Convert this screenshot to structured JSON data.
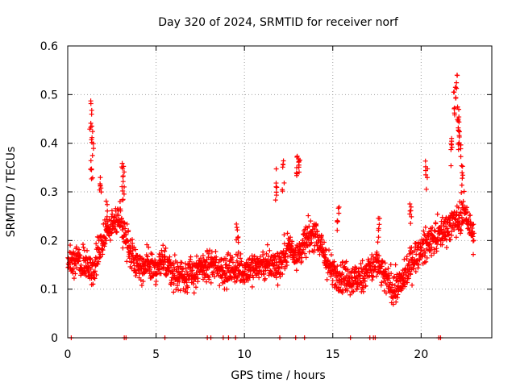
{
  "chart_data": {
    "type": "scatter",
    "title": "Day 320 of 2024, SRMTID for receiver norf",
    "xlabel": "GPS time / hours",
    "ylabel": "SRMTID / TECUs",
    "xlim": [
      0,
      24
    ],
    "ylim": [
      0,
      0.6
    ],
    "x_ticks": [
      0,
      5,
      10,
      15,
      20
    ],
    "y_ticks": [
      0,
      0.1,
      0.2,
      0.3,
      0.4,
      0.5,
      0.6
    ],
    "x_tick_labels": [
      "0",
      "5",
      "10",
      "15",
      "20"
    ],
    "y_tick_labels": [
      "0",
      "0.1",
      "0.2",
      "0.3",
      "0.4",
      "0.5",
      "0.6"
    ],
    "grid": true,
    "marker": "+",
    "series": [
      {
        "name": "SRMTID",
        "color": "#ff0000",
        "trend": [
          [
            0.0,
            0.15
          ],
          [
            0.5,
            0.16
          ],
          [
            1.0,
            0.15
          ],
          [
            1.5,
            0.14
          ],
          [
            2.0,
            0.2
          ],
          [
            2.5,
            0.24
          ],
          [
            3.0,
            0.24
          ],
          [
            3.5,
            0.18
          ],
          [
            4.0,
            0.15
          ],
          [
            5.0,
            0.14
          ],
          [
            5.5,
            0.16
          ],
          [
            6.0,
            0.13
          ],
          [
            7.0,
            0.13
          ],
          [
            8.0,
            0.15
          ],
          [
            9.0,
            0.14
          ],
          [
            10.0,
            0.14
          ],
          [
            11.0,
            0.15
          ],
          [
            12.0,
            0.15
          ],
          [
            12.5,
            0.19
          ],
          [
            13.0,
            0.17
          ],
          [
            13.5,
            0.2
          ],
          [
            14.0,
            0.22
          ],
          [
            14.5,
            0.17
          ],
          [
            15.0,
            0.13
          ],
          [
            15.5,
            0.13
          ],
          [
            16.0,
            0.12
          ],
          [
            16.5,
            0.12
          ],
          [
            17.0,
            0.14
          ],
          [
            17.5,
            0.15
          ],
          [
            18.0,
            0.12
          ],
          [
            18.5,
            0.1
          ],
          [
            19.0,
            0.12
          ],
          [
            19.5,
            0.16
          ],
          [
            20.0,
            0.18
          ],
          [
            20.5,
            0.2
          ],
          [
            21.0,
            0.21
          ],
          [
            21.5,
            0.23
          ],
          [
            22.0,
            0.24
          ],
          [
            22.5,
            0.26
          ],
          [
            23.0,
            0.2
          ]
        ],
        "spikes": [
          {
            "x": 1.3,
            "y": 0.49
          },
          {
            "x": 1.4,
            "y": 0.45
          },
          {
            "x": 1.35,
            "y": 0.38
          },
          {
            "x": 1.85,
            "y": 0.35
          },
          {
            "x": 2.2,
            "y": 0.29
          },
          {
            "x": 3.1,
            "y": 0.375
          },
          {
            "x": 3.15,
            "y": 0.35
          },
          {
            "x": 9.6,
            "y": 0.255
          },
          {
            "x": 11.8,
            "y": 0.35
          },
          {
            "x": 12.2,
            "y": 0.37
          },
          {
            "x": 13.0,
            "y": 0.385
          },
          {
            "x": 13.1,
            "y": 0.39
          },
          {
            "x": 15.3,
            "y": 0.29
          },
          {
            "x": 17.6,
            "y": 0.255
          },
          {
            "x": 19.4,
            "y": 0.295
          },
          {
            "x": 20.3,
            "y": 0.375
          },
          {
            "x": 21.9,
            "y": 0.52
          },
          {
            "x": 22.0,
            "y": 0.54
          },
          {
            "x": 22.1,
            "y": 0.48
          },
          {
            "x": 22.15,
            "y": 0.45
          },
          {
            "x": 22.2,
            "y": 0.43
          },
          {
            "x": 22.3,
            "y": 0.355
          },
          {
            "x": 21.7,
            "y": 0.41
          }
        ],
        "zero_points": [
          0.2,
          3.2,
          3.3,
          5.5,
          7.9,
          8.1,
          8.8,
          9.1,
          9.5,
          12.0,
          12.9,
          13.4,
          16.0,
          17.1,
          17.3,
          17.4,
          21.0,
          21.1
        ]
      }
    ]
  }
}
